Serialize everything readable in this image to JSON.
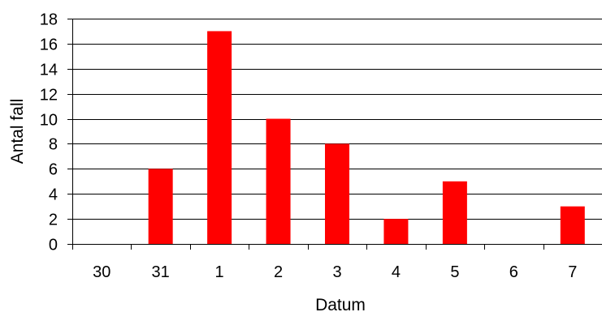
{
  "chart_data": {
    "type": "bar",
    "categories": [
      "30",
      "31",
      "1",
      "2",
      "3",
      "4",
      "5",
      "6",
      "7"
    ],
    "values": [
      0,
      6,
      17,
      10,
      8,
      2,
      5,
      0,
      3
    ],
    "xlabel": "Datum",
    "ylabel": "Antal fall",
    "ylim": [
      0,
      18
    ],
    "yticks": [
      0,
      2,
      4,
      6,
      8,
      10,
      12,
      14,
      16,
      18
    ],
    "grid": true,
    "legend": "none",
    "bar_color": "#ff0000",
    "grid_color": "#000000"
  }
}
